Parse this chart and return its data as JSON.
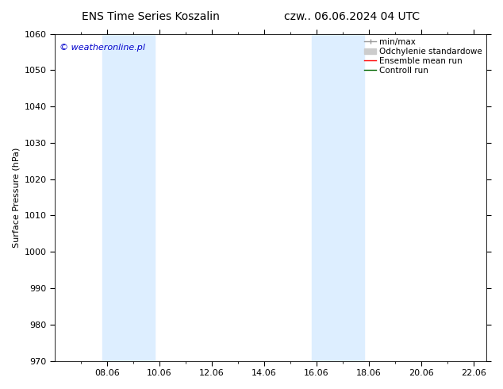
{
  "title_left": "ENS Time Series Koszalin",
  "title_right": "czw.. 06.06.2024 04 UTC",
  "ylabel": "Surface Pressure (hPa)",
  "ylim": [
    970,
    1060
  ],
  "yticks": [
    970,
    980,
    990,
    1000,
    1010,
    1020,
    1030,
    1040,
    1050,
    1060
  ],
  "xtick_labels": [
    "08.06",
    "10.06",
    "12.06",
    "14.06",
    "16.06",
    "18.06",
    "20.06",
    "22.06"
  ],
  "xtick_positions": [
    2,
    4,
    6,
    8,
    10,
    12,
    14,
    16
  ],
  "x_minor_positions": [
    1,
    2,
    3,
    4,
    5,
    6,
    7,
    8,
    9,
    10,
    11,
    12,
    13,
    14,
    15,
    16
  ],
  "xlim": [
    0,
    16.5
  ],
  "watermark": "© weatheronline.pl",
  "watermark_color": "#0000cc",
  "bg_color": "#ffffff",
  "plot_bg_color": "#ffffff",
  "shaded_bands": [
    {
      "x_start": 1.83,
      "x_end": 3.83
    },
    {
      "x_start": 9.83,
      "x_end": 11.83
    }
  ],
  "shaded_color": "#ddeeff",
  "legend_items": [
    {
      "label": "min/max",
      "color": "#999999",
      "lw": 1.0
    },
    {
      "label": "Odchylenie standardowe",
      "color": "#cccccc",
      "lw": 4
    },
    {
      "label": "Ensemble mean run",
      "color": "#ff0000",
      "lw": 1.0
    },
    {
      "label": "Controll run",
      "color": "#006600",
      "lw": 1.0
    }
  ],
  "tick_color": "#000000",
  "font_size": 8,
  "title_font_size": 10
}
